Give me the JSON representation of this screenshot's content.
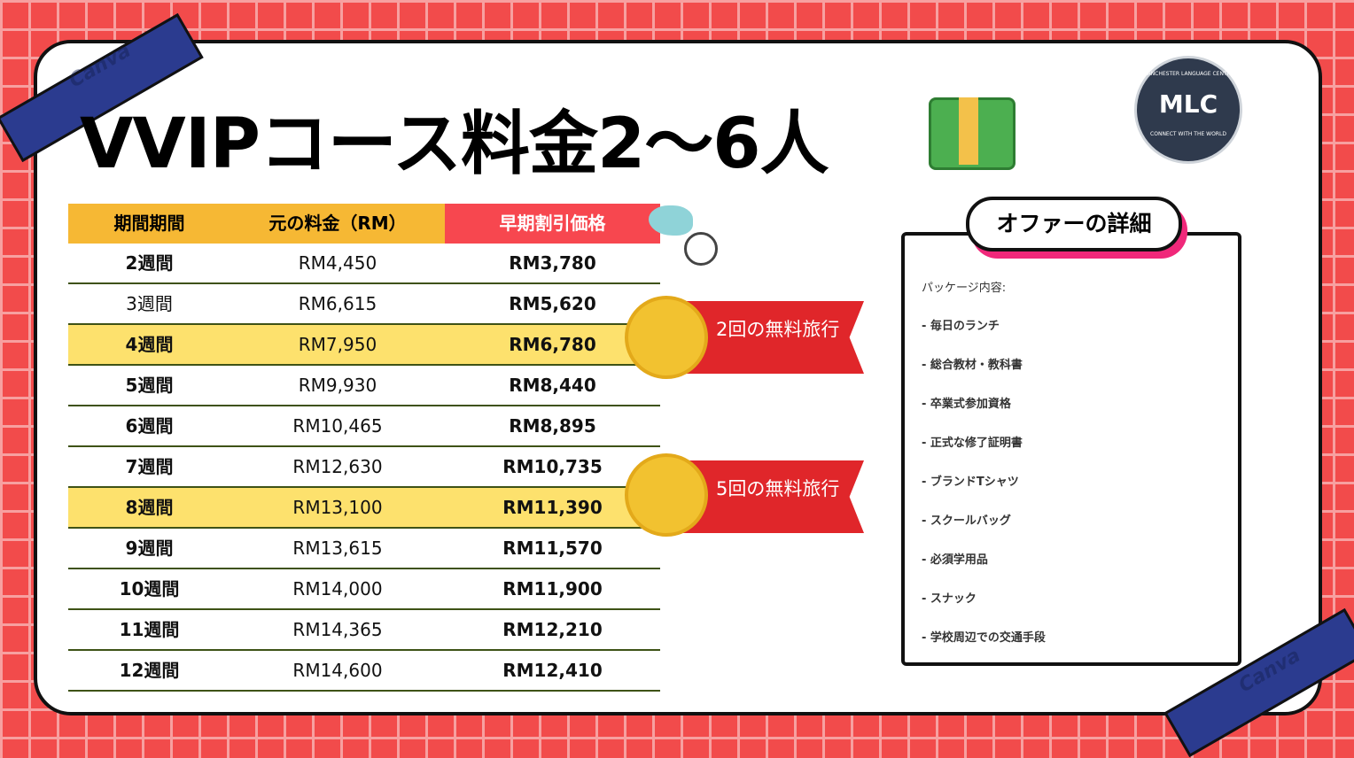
{
  "header": {
    "title": "VVIPコース料金2〜6人",
    "logo": {
      "initials": "MLC",
      "name": "MANCHESTER LANGUAGE CENTRE",
      "tagline": "CONNECT WITH THE WORLD"
    },
    "watermark": "Canva"
  },
  "table": {
    "columns": [
      "期間期間",
      "元の料金（RM）",
      "早期割引価格"
    ],
    "rows": [
      [
        "2週間",
        "RM4,450",
        "RM3,780"
      ],
      [
        "3週間",
        "RM6,615",
        "RM5,620"
      ],
      [
        "4週間",
        "RM7,950",
        "RM6,780"
      ],
      [
        "5週間",
        "RM9,930",
        "RM8,440"
      ],
      [
        "6週間",
        "RM10,465",
        "RM8,895"
      ],
      [
        "7週間",
        "RM12,630",
        "RM10,735"
      ],
      [
        "8週間",
        "RM13,100",
        "RM11,390"
      ],
      [
        "9週間",
        "RM13,615",
        "RM11,570"
      ],
      [
        "10週間",
        "RM14,000",
        "RM11,900"
      ],
      [
        "11週間",
        "RM14,365",
        "RM12,210"
      ],
      [
        "12週間",
        "RM14,600",
        "RM12,410"
      ]
    ]
  },
  "ribbons": [
    "2回の無料旅行",
    "5回の無料旅行"
  ],
  "offer": {
    "title": "オファーの詳細",
    "subtitle": "パッケージ内容:",
    "items": [
      "- 毎日のランチ",
      "- 総合教材・教科書",
      "- 卒業式参加資格",
      "- 正式な修了証明書",
      "- ブランドTシャツ",
      "- スクールバッグ",
      "- 必須学用品",
      "- スナック",
      "- 学校周辺での交通手段"
    ]
  }
}
